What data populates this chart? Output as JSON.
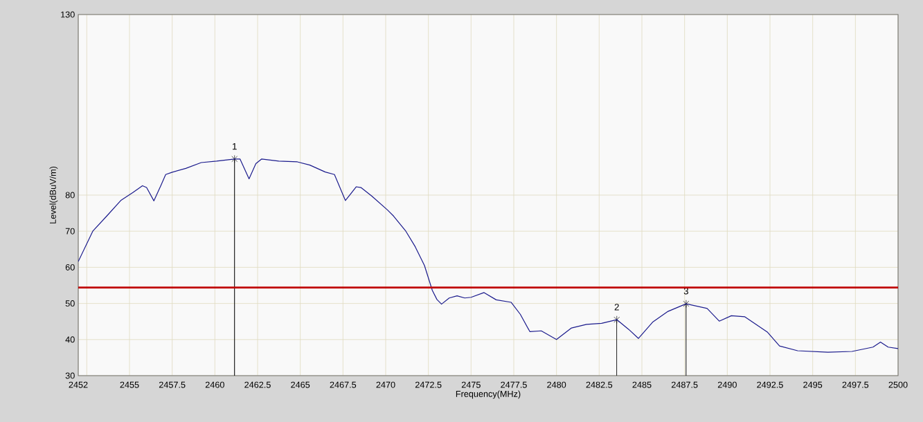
{
  "chart_data": {
    "type": "line",
    "xlabel": "Frequency(MHz)",
    "ylabel": "Level(dBuV/m)",
    "xlim": [
      2452,
      2500
    ],
    "ylim": [
      30,
      130
    ],
    "xticks": [
      2452,
      {
        "value": 2452.5,
        "label": null
      },
      2455,
      2457.5,
      2460,
      2462.5,
      2465,
      2467.5,
      2470,
      2472.5,
      2475,
      2477.5,
      2480,
      2482.5,
      2485,
      2487.5,
      2490,
      2492.5,
      2495,
      2497.5,
      2500
    ],
    "yticks": [
      30,
      40,
      50,
      60,
      70,
      80,
      130
    ],
    "grid": true,
    "line_style": "solid",
    "series": [
      {
        "color": "#1a1a8c",
        "x": [
          2452,
          2452.85,
          2453.67,
          2454.49,
          2455.2,
          2455.76,
          2456.0,
          2456.43,
          2456.85,
          2457.12,
          2457.48,
          2458.3,
          2459.2,
          2460.1,
          2461.15,
          2461.47,
          2462.0,
          2462.4,
          2462.74,
          2463.74,
          2464.83,
          2465.56,
          2466.46,
          2467.0,
          2467.64,
          2468.28,
          2468.55,
          2469.19,
          2470.1,
          2470.46,
          2471.18,
          2471.73,
          2472.27,
          2472.73,
          2473.0,
          2473.27,
          2473.72,
          2474.18,
          2474.63,
          2475.0,
          2475.76,
          2476.47,
          2477.35,
          2477.88,
          2478.44,
          2479.11,
          2480.0,
          2480.88,
          2481.76,
          2482.64,
          2483.53,
          2484.23,
          2484.8,
          2485.65,
          2486.53,
          2487.59,
          2488.82,
          2489.53,
          2490.24,
          2491.03,
          2492.36,
          2493.06,
          2494.12,
          2495.89,
          2497.3,
          2498.53,
          2498.97,
          2499.42,
          2500
        ],
        "values": [
          61.6,
          70,
          74.2,
          78.5,
          80.7,
          82.6,
          82.1,
          78.4,
          82.8,
          85.7,
          86.3,
          87.4,
          89.0,
          89.4,
          90.0,
          90.0,
          84.5,
          88.7,
          90.0,
          89.4,
          89.2,
          88.3,
          86.4,
          85.7,
          78.5,
          82.3,
          82.1,
          79.7,
          75.9,
          74.2,
          70,
          65.7,
          60.5,
          53.6,
          51.1,
          49.8,
          51.5,
          52.1,
          51.5,
          51.7,
          53.0,
          51.0,
          50.3,
          47.0,
          42.2,
          42.4,
          40.0,
          43.2,
          44.2,
          44.5,
          45.5,
          42.8,
          40.3,
          44.9,
          47.8,
          49.9,
          48.6,
          45.1,
          46.6,
          46.3,
          42.0,
          38.2,
          36.9,
          36.5,
          36.7,
          37.9,
          39.3,
          37.9,
          37.5
        ]
      }
    ],
    "ref_lines": [
      {
        "axis": "y",
        "value": 54.4,
        "color": "#c00000"
      }
    ],
    "annotations": [
      {
        "text": "1",
        "x": 2461.15,
        "y": 90.0
      },
      {
        "text": "2",
        "x": 2483.53,
        "y": 45.5
      },
      {
        "text": "3",
        "x": 2487.59,
        "y": 49.9
      }
    ]
  }
}
